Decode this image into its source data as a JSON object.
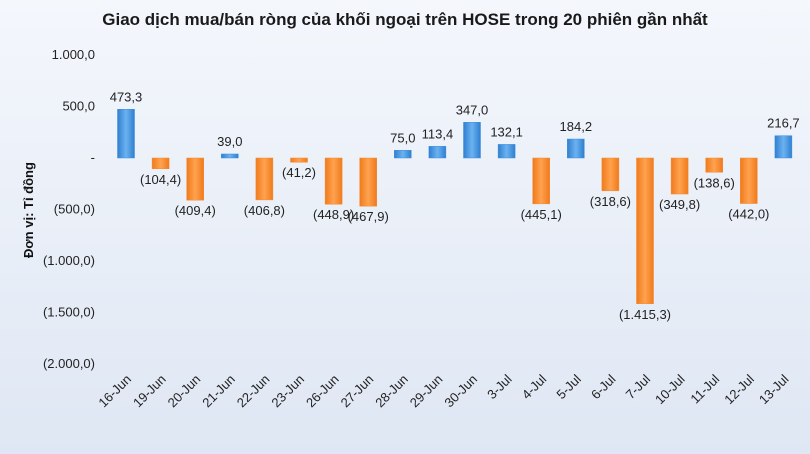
{
  "chart_data": {
    "type": "bar",
    "title": "Giao dịch mua/bán ròng của khối ngoại trên HOSE trong 20 phiên gần nhất",
    "ylabel": "Đơn vị: Tỉ đồng",
    "xlabel": "",
    "ylim": [
      -2000,
      1000
    ],
    "yticks": [
      1000,
      500,
      0,
      -500,
      -1000,
      -1500,
      -2000
    ],
    "ytick_labels": [
      "1.000,0",
      "500,0",
      "-",
      "(500,0)",
      "(1.000,0)",
      "(1.500,0)",
      "(2.000,0)"
    ],
    "grid": false,
    "legend": "none",
    "categories": [
      "16-Jun",
      "19-Jun",
      "20-Jun",
      "21-Jun",
      "22-Jun",
      "23-Jun",
      "26-Jun",
      "27-Jun",
      "28-Jun",
      "29-Jun",
      "30-Jun",
      "3-Jul",
      "4-Jul",
      "5-Jul",
      "6-Jul",
      "7-Jul",
      "10-Jul",
      "11-Jul",
      "12-Jul",
      "13-Jul"
    ],
    "values": [
      473.3,
      -104.4,
      -409.4,
      39.0,
      -406.8,
      -41.2,
      -448.9,
      -467.9,
      75.0,
      113.4,
      347.0,
      132.1,
      -445.1,
      184.2,
      -318.6,
      -1415.3,
      -349.8,
      -138.6,
      -442.0,
      216.7
    ],
    "value_labels": [
      "473,3",
      "(104,4)",
      "(409,4)",
      "39,0",
      "(406,8)",
      "(41,2)",
      "(448,9)",
      "(467,9)",
      "75,0",
      "113,4",
      "347,0",
      "132,1",
      "(445,1)",
      "184,2",
      "(318,6)",
      "(1.415,3)",
      "(349,8)",
      "(138,6)",
      "(442,0)",
      "216,7"
    ],
    "colors": {
      "positive": "#3f8fdc",
      "negative": "#f5892e"
    }
  }
}
